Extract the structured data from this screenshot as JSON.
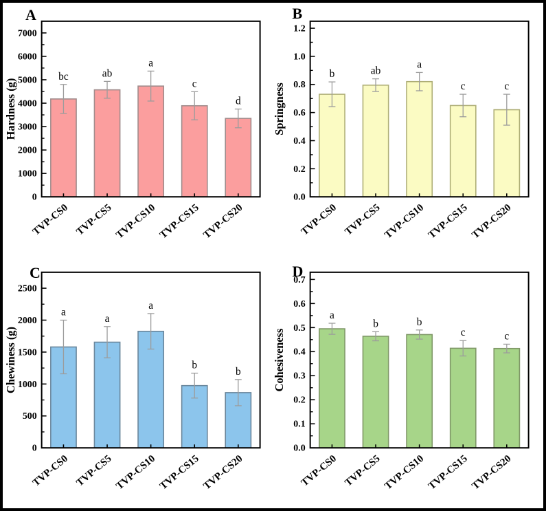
{
  "figure": {
    "background": "#ffffff",
    "frame_color": "#000000",
    "axis_color": "#000000",
    "text_color": "#000000"
  },
  "categories": [
    "TVP-CS0",
    "TVP-CS5",
    "TVP-CS10",
    "TVP-CS15",
    "TVP-CS20"
  ],
  "chart_data": [
    {
      "panel_letter": "A",
      "type": "bar",
      "ylabel": "Hardness (g)",
      "categories": [
        "TVP-CS0",
        "TVP-CS5",
        "TVP-CS10",
        "TVP-CS15",
        "TVP-CS20"
      ],
      "values": [
        4180,
        4570,
        4730,
        3890,
        3350
      ],
      "errors": [
        620,
        360,
        640,
        600,
        400
      ],
      "sig_letters": [
        "bc",
        "ab",
        "a",
        "c",
        "d"
      ],
      "ylim": [
        0,
        7500
      ],
      "ytick_step": 1000,
      "ytick_decimals": 0,
      "bar_fill": "#FB9E9E",
      "bar_stroke": "#A08C8C",
      "error_color": "#9C9C9C"
    },
    {
      "panel_letter": "B",
      "type": "bar",
      "ylabel": "Springness",
      "categories": [
        "TVP-CS0",
        "TVP-CS5",
        "TVP-CS10",
        "TVP-CS15",
        "TVP-CS20"
      ],
      "values": [
        0.73,
        0.795,
        0.82,
        0.65,
        0.62
      ],
      "errors": [
        0.088,
        0.045,
        0.065,
        0.08,
        0.11
      ],
      "sig_letters": [
        "b",
        "ab",
        "a",
        "c",
        "c"
      ],
      "ylim": [
        0,
        1.25
      ],
      "ytick_step": 0.2,
      "ytick_decimals": 1,
      "bar_fill": "#FBFBC3",
      "bar_stroke": "#AEAE76",
      "error_color": "#9C9C9C"
    },
    {
      "panel_letter": "C",
      "type": "bar",
      "ylabel": "Chewiness (g)",
      "categories": [
        "TVP-CS0",
        "TVP-CS5",
        "TVP-CS10",
        "TVP-CS15",
        "TVP-CS20"
      ],
      "values": [
        1580,
        1655,
        1825,
        975,
        865
      ],
      "errors": [
        420,
        245,
        278,
        195,
        205
      ],
      "sig_letters": [
        "a",
        "a",
        "a",
        "b",
        "b"
      ],
      "ylim": [
        0,
        2750
      ],
      "ytick_step": 500,
      "ytick_decimals": 0,
      "bar_fill": "#8CC5EC",
      "bar_stroke": "#6A869B",
      "error_color": "#9C9C9C"
    },
    {
      "panel_letter": "D",
      "type": "bar",
      "ylabel": "Cohesiveness",
      "categories": [
        "TVP-CS0",
        "TVP-CS5",
        "TVP-CS10",
        "TVP-CS15",
        "TVP-CS20"
      ],
      "values": [
        0.495,
        0.464,
        0.471,
        0.414,
        0.413
      ],
      "errors": [
        0.023,
        0.019,
        0.019,
        0.032,
        0.018
      ],
      "sig_letters": [
        "a",
        "b",
        "b",
        "c",
        "c"
      ],
      "ylim": [
        0,
        0.73
      ],
      "ytick_step": 0.1,
      "ytick_decimals": 1,
      "bar_fill": "#A7D589",
      "bar_stroke": "#7F9767",
      "error_color": "#9C9C9C"
    }
  ]
}
